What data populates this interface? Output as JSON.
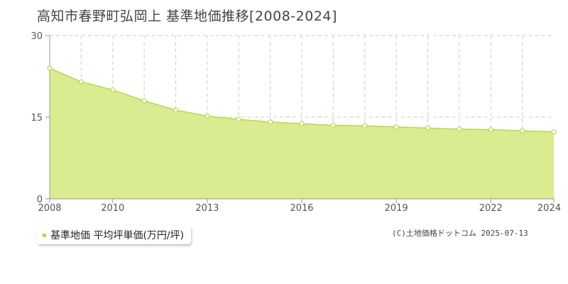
{
  "title": "高知市春野町弘岡上 基準地価推移[2008-2024]",
  "credit": "(C)土地価格ドットコム 2025-07-13",
  "colors": {
    "fill": "#d9ec90",
    "line": "#b8d84f",
    "marker_fill": "#ffffff",
    "grid": "#cccccc",
    "axis": "#999999"
  },
  "chart_data": {
    "type": "area",
    "title": "高知市春野町弘岡上 基準地価推移[2008-2024]",
    "xlabel": "",
    "ylabel": "",
    "x": [
      2008,
      2009,
      2010,
      2011,
      2012,
      2013,
      2014,
      2015,
      2016,
      2017,
      2018,
      2019,
      2020,
      2021,
      2022,
      2023,
      2024
    ],
    "xlim": [
      2008,
      2024
    ],
    "ylim": [
      0,
      30
    ],
    "x_tick_labels": [
      "2008",
      "2010",
      "2013",
      "2016",
      "2019",
      "2022",
      "2024"
    ],
    "y_tick_labels": [
      "0",
      "15",
      "30"
    ],
    "grid": true,
    "legend_position": "bottom-left",
    "series": [
      {
        "name": "基準地価 平均坪単価(万円/坪)",
        "values": [
          24.0,
          21.5,
          20.0,
          18.0,
          16.3,
          15.2,
          14.6,
          14.1,
          13.8,
          13.5,
          13.4,
          13.2,
          13.0,
          12.8,
          12.7,
          12.5,
          12.3
        ]
      }
    ]
  }
}
